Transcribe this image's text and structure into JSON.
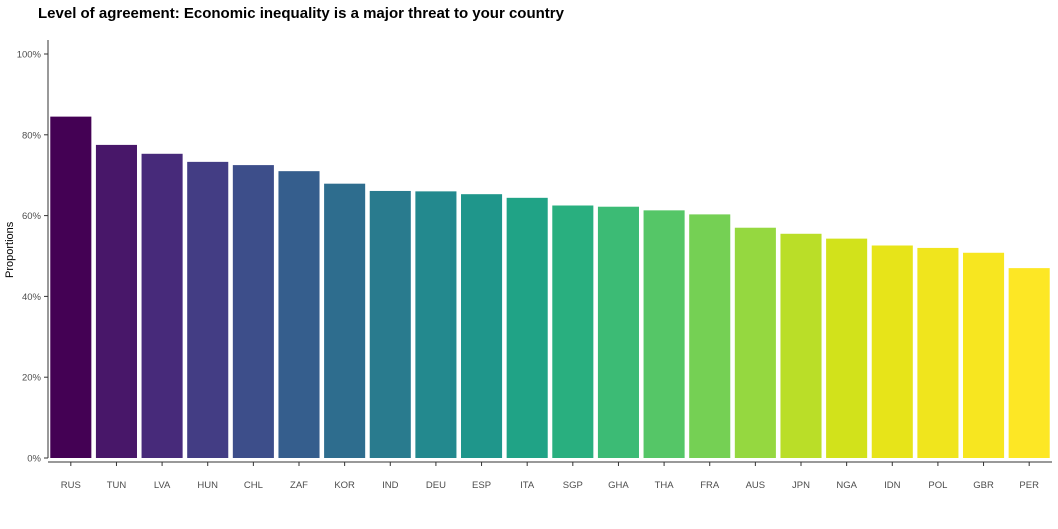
{
  "chart_data": {
    "type": "bar",
    "title": "Level of agreement: Economic inequality is a major threat to your country",
    "xlabel": "",
    "ylabel": "Proportions",
    "ylim": [
      0,
      100
    ],
    "yticks": [
      "0%",
      "20%",
      "40%",
      "60%",
      "80%",
      "100%"
    ],
    "grid": false,
    "categories": [
      "RUS",
      "TUN",
      "LVA",
      "HUN",
      "CHL",
      "ZAF",
      "KOR",
      "IND",
      "DEU",
      "ESP",
      "ITA",
      "SGP",
      "GHA",
      "THA",
      "FRA",
      "AUS",
      "JPN",
      "NGA",
      "IDN",
      "POL",
      "GBR",
      "PER"
    ],
    "values": [
      84.5,
      77.5,
      75.3,
      73.3,
      72.5,
      71.0,
      67.9,
      66.1,
      66.0,
      65.3,
      64.4,
      62.5,
      62.2,
      61.3,
      60.3,
      57.0,
      55.5,
      54.3,
      52.6,
      52.0,
      50.8,
      47.0
    ],
    "colors": [
      "#440154",
      "#481769",
      "#472a7a",
      "#433d84",
      "#3d4e8a",
      "#355e8d",
      "#2e6d8e",
      "#297b8e",
      "#23898e",
      "#1f968b",
      "#20a386",
      "#29af7f",
      "#3cbb75",
      "#55c667",
      "#75d054",
      "#95d840",
      "#bade28",
      "#d2e21b",
      "#e7e419",
      "#f0e51d",
      "#f7e620",
      "#fde725"
    ]
  }
}
